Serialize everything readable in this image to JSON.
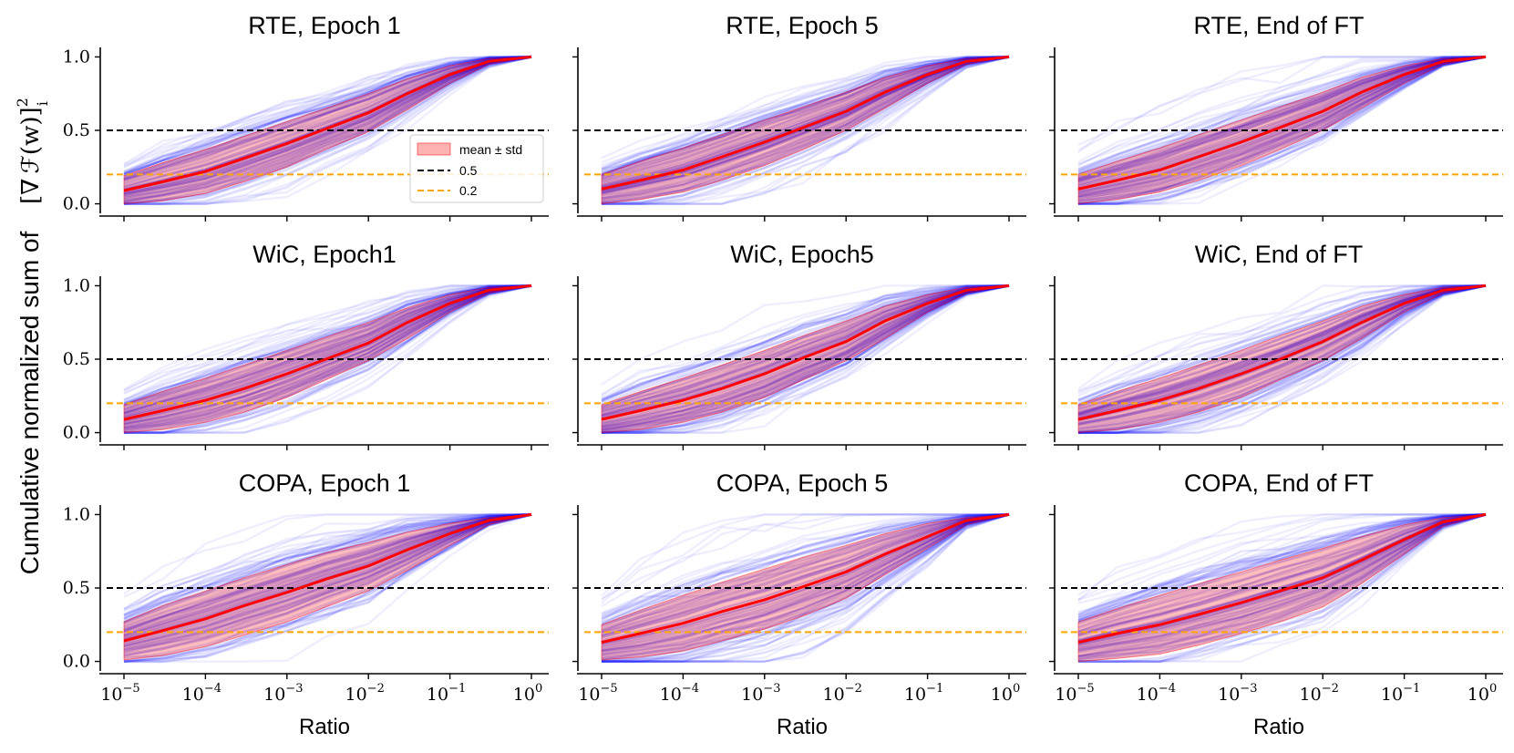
{
  "figure": {
    "ylabel_text": "Cumulative normalized sum of",
    "ylabel_math": "[∇ ℱ(w)]",
    "ylabel_math_sup": "2",
    "ylabel_math_sub": "i",
    "xlabel": "Ratio"
  },
  "colors": {
    "trace": "#0000ff",
    "band": "#ff0000",
    "mean": "#ff0000",
    "ref_black": "#000000",
    "ref_orange": "#ffa500"
  },
  "chart_data": [
    {
      "type": "line",
      "title": "RTE, Epoch 1",
      "x": [
        1e-05,
        3e-05,
        0.0001,
        0.0003,
        0.001,
        0.003,
        0.01,
        0.03,
        0.1,
        0.3,
        1
      ],
      "series": [
        {
          "name": "mean",
          "values": [
            0.09,
            0.15,
            0.22,
            0.31,
            0.41,
            0.51,
            0.62,
            0.75,
            0.88,
            0.97,
            1.0
          ]
        },
        {
          "name": "mean + std",
          "values": [
            0.19,
            0.28,
            0.37,
            0.46,
            0.56,
            0.65,
            0.75,
            0.85,
            0.94,
            0.99,
            1.0
          ]
        },
        {
          "name": "mean - std",
          "values": [
            0.0,
            0.02,
            0.07,
            0.15,
            0.25,
            0.37,
            0.49,
            0.64,
            0.82,
            0.95,
            1.0
          ]
        }
      ],
      "hlines": [
        {
          "label": "0.5",
          "y": 0.5
        },
        {
          "label": "0.2",
          "y": 0.2
        }
      ],
      "legend": {
        "position": "center-right",
        "entries": [
          "mean ± std",
          "0.5",
          "0.2"
        ]
      },
      "ylim": [
        -0.04,
        1.04
      ],
      "yticks": [
        "0.0",
        "0.5",
        "1.0"
      ],
      "xticks": [
        {
          "base": "10",
          "exp": "−5"
        },
        {
          "base": "10",
          "exp": "−4"
        },
        {
          "base": "10",
          "exp": "−3"
        },
        {
          "base": "10",
          "exp": "−2"
        },
        {
          "base": "10",
          "exp": "−1"
        },
        {
          "base": "10",
          "exp": "0"
        }
      ]
    },
    {
      "type": "line",
      "title": "RTE, Epoch 5",
      "x": [
        1e-05,
        3e-05,
        0.0001,
        0.0003,
        0.001,
        0.003,
        0.01,
        0.03,
        0.1,
        0.3,
        1
      ],
      "series": [
        {
          "name": "mean",
          "values": [
            0.1,
            0.16,
            0.23,
            0.32,
            0.42,
            0.52,
            0.63,
            0.76,
            0.88,
            0.97,
            1.0
          ]
        },
        {
          "name": "mean + std",
          "values": [
            0.2,
            0.29,
            0.38,
            0.47,
            0.57,
            0.66,
            0.76,
            0.86,
            0.94,
            0.99,
            1.0
          ]
        },
        {
          "name": "mean - std",
          "values": [
            0.0,
            0.03,
            0.08,
            0.16,
            0.26,
            0.37,
            0.5,
            0.65,
            0.82,
            0.95,
            1.0
          ]
        }
      ],
      "hlines": [
        {
          "label": "0.5",
          "y": 0.5
        },
        {
          "label": "0.2",
          "y": 0.2
        }
      ],
      "ylim": [
        -0.04,
        1.04
      ],
      "xticks": [
        {
          "base": "10",
          "exp": "−5"
        },
        {
          "base": "10",
          "exp": "−4"
        },
        {
          "base": "10",
          "exp": "−3"
        },
        {
          "base": "10",
          "exp": "−2"
        },
        {
          "base": "10",
          "exp": "−1"
        },
        {
          "base": "10",
          "exp": "0"
        }
      ]
    },
    {
      "type": "line",
      "title": "RTE, End of FT",
      "x": [
        1e-05,
        3e-05,
        0.0001,
        0.0003,
        0.001,
        0.003,
        0.01,
        0.03,
        0.1,
        0.3,
        1
      ],
      "series": [
        {
          "name": "mean",
          "values": [
            0.1,
            0.16,
            0.23,
            0.32,
            0.42,
            0.52,
            0.63,
            0.76,
            0.88,
            0.97,
            1.0
          ]
        },
        {
          "name": "mean + std",
          "values": [
            0.2,
            0.29,
            0.38,
            0.47,
            0.57,
            0.66,
            0.76,
            0.86,
            0.94,
            0.99,
            1.0
          ]
        },
        {
          "name": "mean - std",
          "values": [
            0.0,
            0.03,
            0.08,
            0.16,
            0.26,
            0.37,
            0.5,
            0.65,
            0.82,
            0.95,
            1.0
          ]
        }
      ],
      "hlines": [
        {
          "label": "0.5",
          "y": 0.5
        },
        {
          "label": "0.2",
          "y": 0.2
        }
      ],
      "ylim": [
        -0.04,
        1.04
      ],
      "xticks": [
        {
          "base": "10",
          "exp": "−5"
        },
        {
          "base": "10",
          "exp": "−4"
        },
        {
          "base": "10",
          "exp": "−3"
        },
        {
          "base": "10",
          "exp": "−2"
        },
        {
          "base": "10",
          "exp": "−1"
        },
        {
          "base": "10",
          "exp": "0"
        }
      ]
    },
    {
      "type": "line",
      "title": "WiC, Epoch1",
      "x": [
        1e-05,
        3e-05,
        0.0001,
        0.0003,
        0.001,
        0.003,
        0.01,
        0.03,
        0.1,
        0.3,
        1
      ],
      "series": [
        {
          "name": "mean",
          "values": [
            0.09,
            0.15,
            0.22,
            0.3,
            0.4,
            0.5,
            0.61,
            0.75,
            0.88,
            0.97,
            1.0
          ]
        },
        {
          "name": "mean + std",
          "values": [
            0.19,
            0.28,
            0.37,
            0.46,
            0.56,
            0.65,
            0.75,
            0.85,
            0.94,
            0.99,
            1.0
          ]
        },
        {
          "name": "mean - std",
          "values": [
            0.0,
            0.02,
            0.07,
            0.14,
            0.24,
            0.36,
            0.49,
            0.64,
            0.82,
            0.95,
            1.0
          ]
        }
      ],
      "hlines": [
        {
          "label": "0.5",
          "y": 0.5
        },
        {
          "label": "0.2",
          "y": 0.2
        }
      ],
      "ylim": [
        -0.04,
        1.04
      ],
      "yticks": [
        "0.0",
        "0.5",
        "1.0"
      ],
      "xticks": [
        {
          "base": "10",
          "exp": "−5"
        },
        {
          "base": "10",
          "exp": "−4"
        },
        {
          "base": "10",
          "exp": "−3"
        },
        {
          "base": "10",
          "exp": "−2"
        },
        {
          "base": "10",
          "exp": "−1"
        },
        {
          "base": "10",
          "exp": "0"
        }
      ]
    },
    {
      "type": "line",
      "title": "WiC, Epoch5",
      "x": [
        1e-05,
        3e-05,
        0.0001,
        0.0003,
        0.001,
        0.003,
        0.01,
        0.03,
        0.1,
        0.3,
        1
      ],
      "series": [
        {
          "name": "mean",
          "values": [
            0.09,
            0.15,
            0.22,
            0.3,
            0.4,
            0.51,
            0.62,
            0.76,
            0.88,
            0.97,
            1.0
          ]
        },
        {
          "name": "mean + std",
          "values": [
            0.19,
            0.28,
            0.37,
            0.46,
            0.56,
            0.66,
            0.76,
            0.86,
            0.94,
            0.99,
            1.0
          ]
        },
        {
          "name": "mean - std",
          "values": [
            0.0,
            0.02,
            0.07,
            0.14,
            0.24,
            0.36,
            0.49,
            0.64,
            0.82,
            0.95,
            1.0
          ]
        }
      ],
      "hlines": [
        {
          "label": "0.5",
          "y": 0.5
        },
        {
          "label": "0.2",
          "y": 0.2
        }
      ],
      "ylim": [
        -0.04,
        1.04
      ],
      "xticks": [
        {
          "base": "10",
          "exp": "−5"
        },
        {
          "base": "10",
          "exp": "−4"
        },
        {
          "base": "10",
          "exp": "−3"
        },
        {
          "base": "10",
          "exp": "−2"
        },
        {
          "base": "10",
          "exp": "−1"
        },
        {
          "base": "10",
          "exp": "0"
        }
      ]
    },
    {
      "type": "line",
      "title": "WiC, End of FT",
      "x": [
        1e-05,
        3e-05,
        0.0001,
        0.0003,
        0.001,
        0.003,
        0.01,
        0.03,
        0.1,
        0.3,
        1
      ],
      "series": [
        {
          "name": "mean",
          "values": [
            0.09,
            0.15,
            0.22,
            0.3,
            0.4,
            0.5,
            0.62,
            0.75,
            0.88,
            0.97,
            1.0
          ]
        },
        {
          "name": "mean + std",
          "values": [
            0.19,
            0.28,
            0.37,
            0.46,
            0.56,
            0.66,
            0.76,
            0.86,
            0.94,
            0.99,
            1.0
          ]
        },
        {
          "name": "mean - std",
          "values": [
            0.0,
            0.02,
            0.07,
            0.14,
            0.24,
            0.36,
            0.49,
            0.64,
            0.82,
            0.95,
            1.0
          ]
        }
      ],
      "hlines": [
        {
          "label": "0.5",
          "y": 0.5
        },
        {
          "label": "0.2",
          "y": 0.2
        }
      ],
      "ylim": [
        -0.04,
        1.04
      ],
      "xticks": [
        {
          "base": "10",
          "exp": "−5"
        },
        {
          "base": "10",
          "exp": "−4"
        },
        {
          "base": "10",
          "exp": "−3"
        },
        {
          "base": "10",
          "exp": "−2"
        },
        {
          "base": "10",
          "exp": "−1"
        },
        {
          "base": "10",
          "exp": "0"
        }
      ]
    },
    {
      "type": "line",
      "title": "COPA, Epoch 1",
      "x": [
        1e-05,
        3e-05,
        0.0001,
        0.0003,
        0.001,
        0.003,
        0.01,
        0.03,
        0.1,
        0.3,
        1
      ],
      "series": [
        {
          "name": "mean",
          "values": [
            0.14,
            0.21,
            0.29,
            0.38,
            0.47,
            0.56,
            0.65,
            0.76,
            0.87,
            0.96,
            1.0
          ]
        },
        {
          "name": "mean + std",
          "values": [
            0.27,
            0.38,
            0.48,
            0.57,
            0.66,
            0.74,
            0.81,
            0.88,
            0.94,
            0.98,
            1.0
          ]
        },
        {
          "name": "mean - std",
          "values": [
            0.01,
            0.04,
            0.1,
            0.18,
            0.27,
            0.37,
            0.48,
            0.62,
            0.79,
            0.93,
            1.0
          ]
        }
      ],
      "hlines": [
        {
          "label": "0.5",
          "y": 0.5
        },
        {
          "label": "0.2",
          "y": 0.2
        }
      ],
      "ylim": [
        -0.04,
        1.04
      ],
      "yticks": [
        "0.0",
        "0.5",
        "1.0"
      ],
      "xticks": [
        {
          "base": "10",
          "exp": "−5"
        },
        {
          "base": "10",
          "exp": "−4"
        },
        {
          "base": "10",
          "exp": "−3"
        },
        {
          "base": "10",
          "exp": "−2"
        },
        {
          "base": "10",
          "exp": "−1"
        },
        {
          "base": "10",
          "exp": "0"
        }
      ],
      "xlabel": "Ratio"
    },
    {
      "type": "line",
      "title": "COPA, Epoch 5",
      "x": [
        1e-05,
        3e-05,
        0.0001,
        0.0003,
        0.001,
        0.003,
        0.01,
        0.03,
        0.1,
        0.3,
        1
      ],
      "series": [
        {
          "name": "mean",
          "values": [
            0.13,
            0.19,
            0.26,
            0.34,
            0.42,
            0.51,
            0.61,
            0.73,
            0.85,
            0.96,
            1.0
          ]
        },
        {
          "name": "mean + std",
          "values": [
            0.25,
            0.35,
            0.45,
            0.54,
            0.63,
            0.71,
            0.79,
            0.87,
            0.94,
            0.98,
            1.0
          ]
        },
        {
          "name": "mean - std",
          "values": [
            0.01,
            0.03,
            0.07,
            0.14,
            0.22,
            0.31,
            0.43,
            0.59,
            0.77,
            0.93,
            1.0
          ]
        }
      ],
      "hlines": [
        {
          "label": "0.5",
          "y": 0.5
        },
        {
          "label": "0.2",
          "y": 0.2
        }
      ],
      "ylim": [
        -0.04,
        1.04
      ],
      "xticks": [
        {
          "base": "10",
          "exp": "−5"
        },
        {
          "base": "10",
          "exp": "−4"
        },
        {
          "base": "10",
          "exp": "−3"
        },
        {
          "base": "10",
          "exp": "−2"
        },
        {
          "base": "10",
          "exp": "−1"
        },
        {
          "base": "10",
          "exp": "0"
        }
      ],
      "xlabel": "Ratio"
    },
    {
      "type": "line",
      "title": "COPA, End of FT",
      "x": [
        1e-05,
        3e-05,
        0.0001,
        0.0003,
        0.001,
        0.003,
        0.01,
        0.03,
        0.1,
        0.3,
        1
      ],
      "series": [
        {
          "name": "mean",
          "values": [
            0.13,
            0.19,
            0.25,
            0.32,
            0.4,
            0.48,
            0.57,
            0.69,
            0.83,
            0.95,
            1.0
          ]
        },
        {
          "name": "mean + std",
          "values": [
            0.27,
            0.36,
            0.45,
            0.53,
            0.61,
            0.69,
            0.77,
            0.85,
            0.93,
            0.98,
            1.0
          ]
        },
        {
          "name": "mean - std",
          "values": [
            0.0,
            0.02,
            0.05,
            0.11,
            0.19,
            0.27,
            0.37,
            0.53,
            0.73,
            0.92,
            1.0
          ]
        }
      ],
      "hlines": [
        {
          "label": "0.5",
          "y": 0.5
        },
        {
          "label": "0.2",
          "y": 0.2
        }
      ],
      "ylim": [
        -0.04,
        1.04
      ],
      "xticks": [
        {
          "base": "10",
          "exp": "−5"
        },
        {
          "base": "10",
          "exp": "−4"
        },
        {
          "base": "10",
          "exp": "−3"
        },
        {
          "base": "10",
          "exp": "−2"
        },
        {
          "base": "10",
          "exp": "−1"
        },
        {
          "base": "10",
          "exp": "0"
        }
      ],
      "xlabel": "Ratio"
    }
  ]
}
